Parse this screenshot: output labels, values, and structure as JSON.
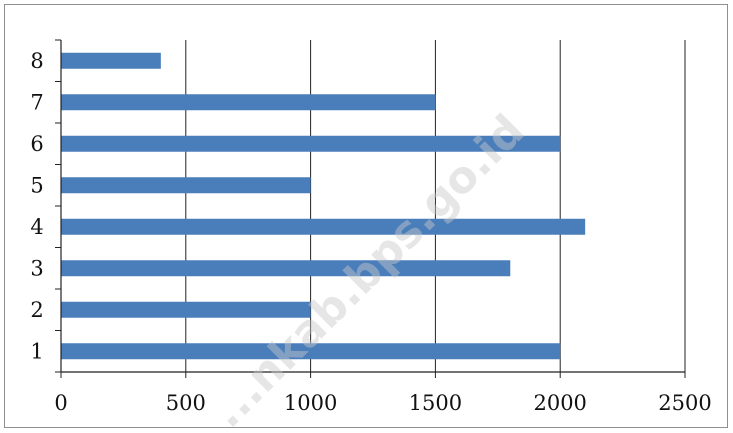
{
  "chart_data": {
    "type": "bar",
    "orientation": "horizontal",
    "categories": [
      "1",
      "2",
      "3",
      "4",
      "5",
      "6",
      "7",
      "8"
    ],
    "values": [
      2000,
      1000,
      1800,
      2100,
      1000,
      2000,
      1500,
      400
    ],
    "title": "",
    "xlabel": "",
    "ylabel": "",
    "xlim": [
      0,
      2500
    ],
    "xticks": [
      0,
      500,
      1000,
      1500,
      2000,
      2500
    ],
    "grid": "vertical",
    "legend": "none",
    "bar_color": "#4a7ebb",
    "gridline_color": "#222222"
  },
  "watermark": "...nkab.bps.go.id"
}
